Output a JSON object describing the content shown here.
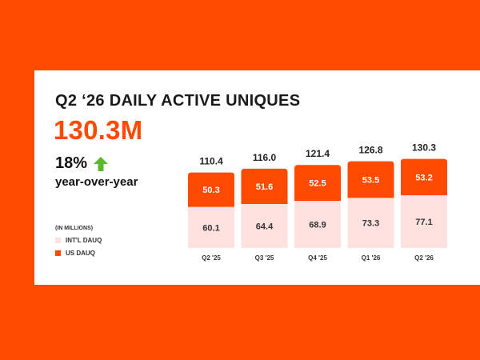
{
  "header": {
    "title": "Q2 ‘26 DAILY ACTIVE UNIQUES",
    "big_number": "130.3M",
    "growth": "18%",
    "growth_label": "year-over-year"
  },
  "legend": {
    "units_note": "(IN MILLIONS)",
    "items": [
      {
        "label": "INT'L DAUQ",
        "color": "#ffe2e0"
      },
      {
        "label": "US DAUQ",
        "color": "#ff4a00"
      }
    ]
  },
  "colors": {
    "accent": "#ff4a00",
    "intl": "#ffe2e0",
    "arrow": "#5cb82e",
    "background": "#ff4a00"
  },
  "icons": {
    "growth_arrow": "up-arrow-icon"
  },
  "chart_data": {
    "type": "bar",
    "stacked": true,
    "categories": [
      "Q2 '25",
      "Q3 '25",
      "Q4 '25",
      "Q1 '26",
      "Q2 '26"
    ],
    "series": [
      {
        "name": "INT'L DAUQ",
        "values": [
          60.1,
          64.4,
          68.9,
          73.3,
          77.1
        ]
      },
      {
        "name": "US DAUQ",
        "values": [
          50.3,
          51.6,
          52.5,
          53.5,
          53.2
        ]
      }
    ],
    "totals": [
      "110.4",
      "116.0",
      "121.4",
      "126.8",
      "130.3"
    ],
    "segment_labels": {
      "intl": [
        "60.1",
        "64.4",
        "68.9",
        "73.3",
        "77.1"
      ],
      "us": [
        "50.3",
        "51.6",
        "52.5",
        "53.5",
        "53.2"
      ]
    },
    "ylim": [
      0,
      135
    ],
    "grid": false,
    "legend_position": "bottom-left"
  }
}
